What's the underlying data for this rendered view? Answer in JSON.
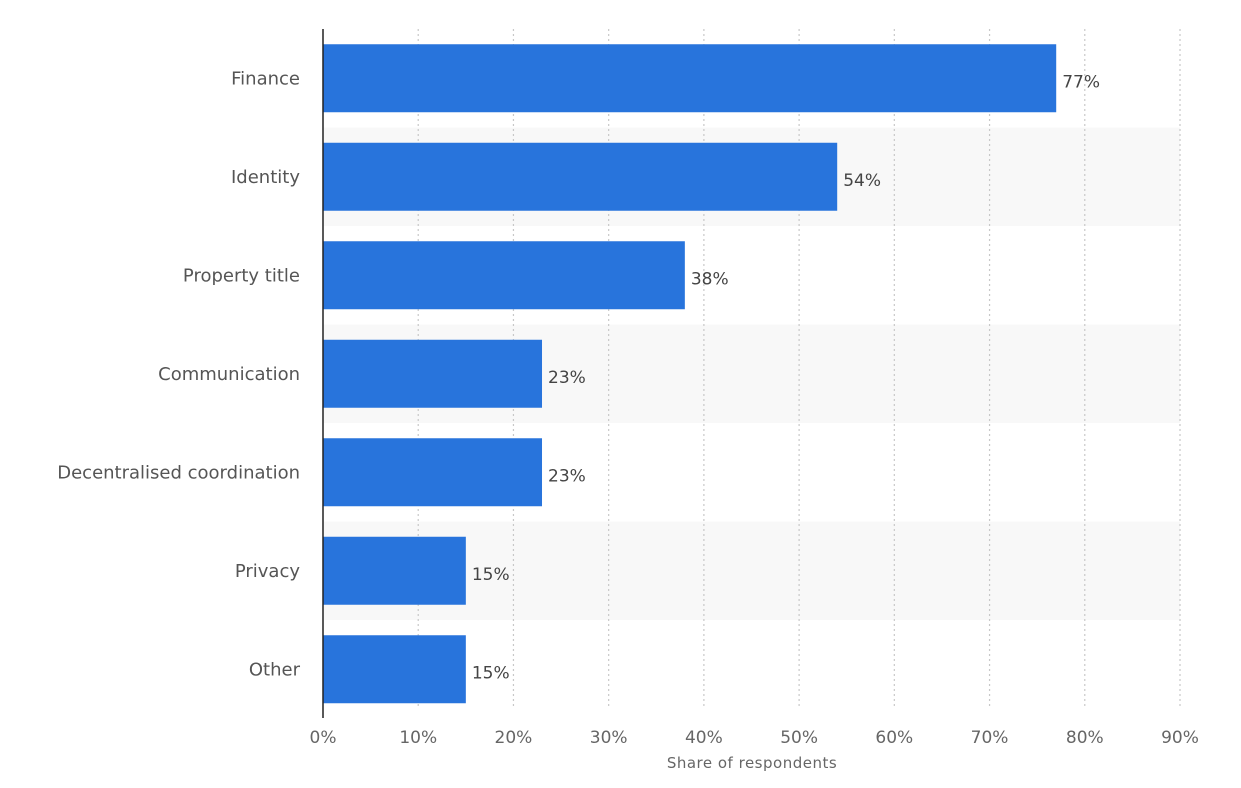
{
  "chart_data": {
    "type": "bar",
    "orientation": "horizontal",
    "title": "",
    "xlabel": "Share of respondents",
    "ylabel": "",
    "categories": [
      "Finance",
      "Identity",
      "Property title",
      "Communication",
      "Decentralised coordination",
      "Privacy",
      "Other"
    ],
    "values": [
      77,
      54,
      38,
      23,
      23,
      15,
      15
    ],
    "value_labels": [
      "77%",
      "54%",
      "38%",
      "23%",
      "23%",
      "15%",
      "15%"
    ],
    "xlim": [
      0,
      90
    ],
    "x_ticks": [
      0,
      10,
      20,
      30,
      40,
      50,
      60,
      70,
      80,
      90
    ],
    "x_tick_labels": [
      "0%",
      "10%",
      "20%",
      "30%",
      "40%",
      "50%",
      "60%",
      "70%",
      "80%",
      "90%"
    ],
    "grid": "vertical-dotted",
    "legend": "none",
    "bar_color": "#2874dc",
    "band_color": "#f8f8f8"
  }
}
